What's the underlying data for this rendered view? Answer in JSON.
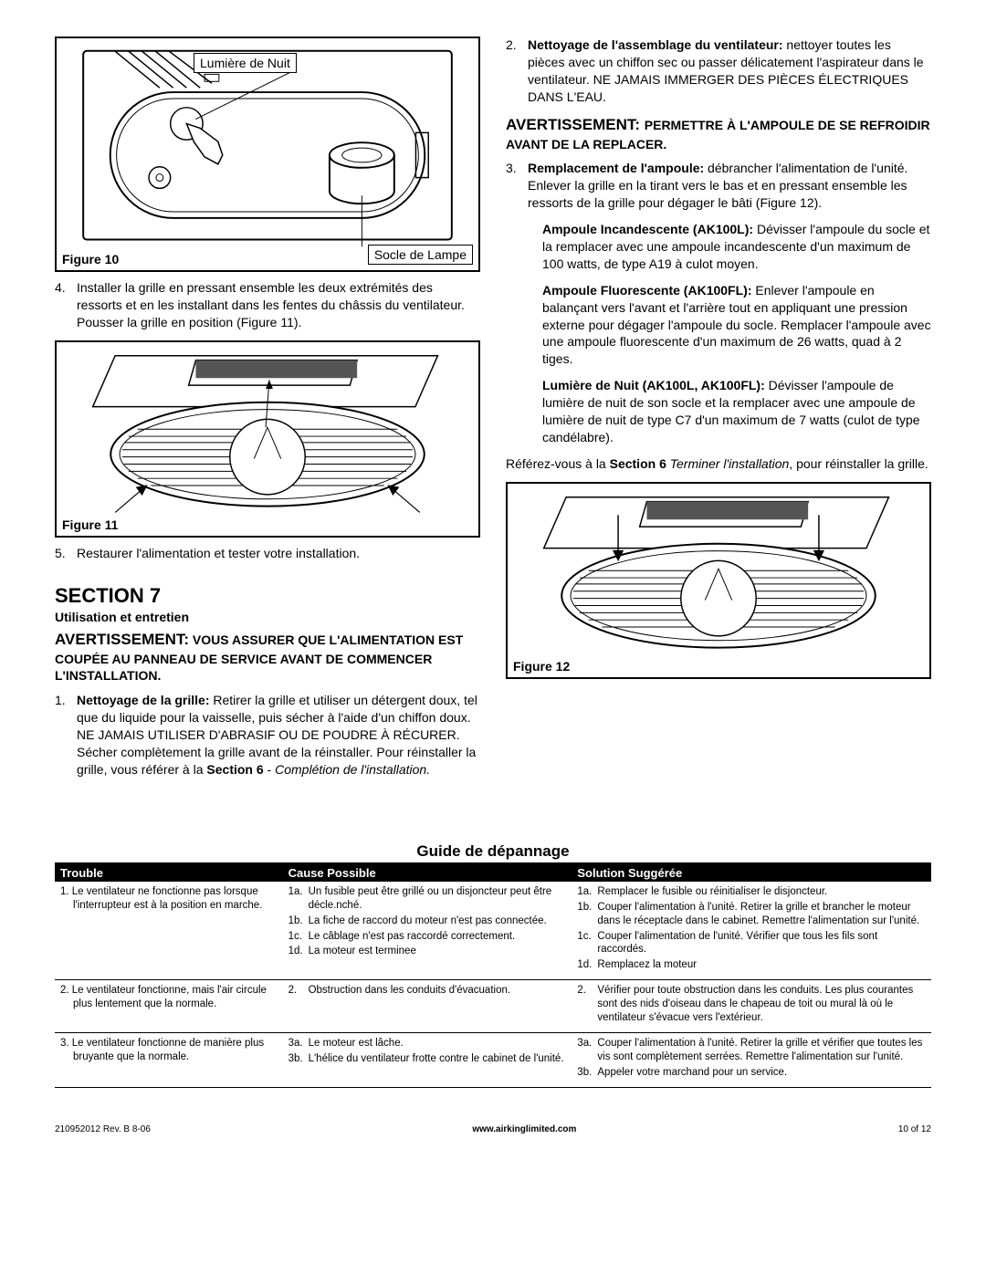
{
  "left": {
    "fig10": {
      "label": "Figure 10",
      "call1": "Lumière de Nuit",
      "call2": "Socle de Lampe"
    },
    "step4": "Installer la grille en pressant ensemble les deux extrémités des ressorts et en les installant dans les fentes du châssis du ventilateur. Pousser la grille en position (Figure 11).",
    "fig11": {
      "label": "Figure 11"
    },
    "step5": "Restaurer l'alimentation et tester votre installation.",
    "sec7": {
      "title": "SECTION 7",
      "sub": "Utilisation et entretien"
    },
    "warn1": "AVERTISSEMENT: VOUS ASSURER QUE L'ALIMENTATION EST COUPÉE AU PANNEAU DE SERVICE AVANT DE COMMENCER L'INSTALLATION.",
    "step1_label": "Nettoyage de la grille:",
    "step1": "Retirer la grille et utiliser un détergent doux, tel que du liquide pour la vaisselle, puis sécher à l'aide d'un chiffon doux. NE JAMAIS UTILISER D'ABRASIF OU DE POUDRE À RÉCURER. Sécher complètement la grille avant de la réinstaller. Pour réinstaller la grille, vous référer à la ",
    "step1_link": "Section 6 - Complétion de l'installation."
  },
  "right": {
    "step2_label": "Nettoyage de l'assemblage du ventilateur:",
    "step2": "nettoyer toutes les pièces avec un chiffon sec ou passer délicatement l'aspirateur dans le ventilateur. NE JAMAIS IMMERGER DES PIÈCES ÉLECTRIQUES DANS L'EAU.",
    "warn2a": "AVERTISSEMENT: ",
    "warn2b": "PERMETTRE À L'AMPOULE DE SE REFROIDIR AVANT DE LA REPLACER.",
    "step3_label": "Remplacement de l'ampoule:",
    "step3": "débrancher l'alimentation de l'unité. Enlever la grille en la tirant vers le bas et en pressant ensemble les ressorts de la grille pour dégager le bâti (Figure 12).",
    "bulb1_label": "Ampoule Incandescente (AK100L):",
    "bulb1": "Dévisser l'ampoule du socle et la remplacer avec une ampoule incandescente d'un maximum de 100 watts, de type A19 à culot moyen.",
    "bulb2_label": "Ampoule Fluorescente (AK100FL):",
    "bulb2": "Enlever l'ampoule en balançant vers l'avant et l'arrière tout en appliquant une pression externe pour dégager l'ampoule du socle. Remplacer l'ampoule avec une ampoule fluorescente d'un maximum de 26 watts, quad à 2 tiges.",
    "bulb3_label": "Lumière de Nuit (AK100L, AK100FL):",
    "bulb3": "Dévisser l'ampoule de lumière de nuit de son socle et la remplacer avec une ampoule de lumière de nuit de type C7 d'un maximum de 7 watts (culot de type candélabre).",
    "ref": "Référez-vous à la ",
    "ref_b": "Section 6",
    "ref_i": " Terminer l'installation",
    "ref_end": ", pour réinstaller la grille.",
    "fig12": {
      "label": "Figure 12"
    }
  },
  "trouble": {
    "title": "Guide de dépannage",
    "headers": [
      "Trouble",
      "Cause Possible",
      "Solution Suggérée"
    ],
    "rows": [
      {
        "t": "1. Le ventilateur ne fonctionne pas lorsque l'interrupteur est à la position en marche.",
        "causes": [
          [
            "1a.",
            "Un fusible peut être grillé ou un disjoncteur peut être décle.nché."
          ],
          [
            "1b.",
            "La fiche de raccord du moteur n'est pas connectée."
          ],
          [
            "1c.",
            "Le câblage n'est pas raccordé correctement."
          ],
          [
            "1d.",
            "La moteur est terminee"
          ]
        ],
        "solutions": [
          [
            "1a.",
            "Remplacer le fusible ou réinitialiser le disjoncteur."
          ],
          [
            "1b.",
            "Couper l'alimentation à l'unité.  Retirer la grille et brancher le moteur dans le réceptacle dans le cabinet.  Remettre l'alimentation sur l'unité."
          ],
          [
            "1c.",
            "Couper l'alimentation de l'unité. Vérifier que tous les fils sont raccordés."
          ],
          [
            "1d.",
            "Remplacez la moteur"
          ]
        ]
      },
      {
        "t": "2. Le ventilateur fonctionne, mais l'air circule plus lentement que la normale.",
        "causes": [
          [
            "2.",
            "Obstruction dans les conduits d'évacuation."
          ]
        ],
        "solutions": [
          [
            "2.",
            "Vérifier pour toute obstruction dans les conduits.  Les plus courantes sont des nids d'oiseau dans le chapeau de toit ou mural là où le ventilateur s'évacue vers l'extérieur."
          ]
        ]
      },
      {
        "t": "3. Le ventilateur fonctionne de manière plus bruyante que la normale.",
        "causes": [
          [
            "3a.",
            "Le moteur est lâche."
          ],
          [
            "3b.",
            "L'hélice du ventilateur frotte contre le cabinet de l'unité."
          ]
        ],
        "solutions": [
          [
            "3a.",
            "Couper l'alimentation à l'unité. Retirer la grille et vérifier que toutes les vis sont complètement serrées. Remettre l'alimentation sur l'unité."
          ],
          [
            "3b.",
            "Appeler votre marchand pour un service."
          ]
        ]
      }
    ]
  },
  "footer": {
    "l": "210952012 Rev. B 8-06",
    "c": "www.airkinglimited.com",
    "r": "10 of 12"
  }
}
